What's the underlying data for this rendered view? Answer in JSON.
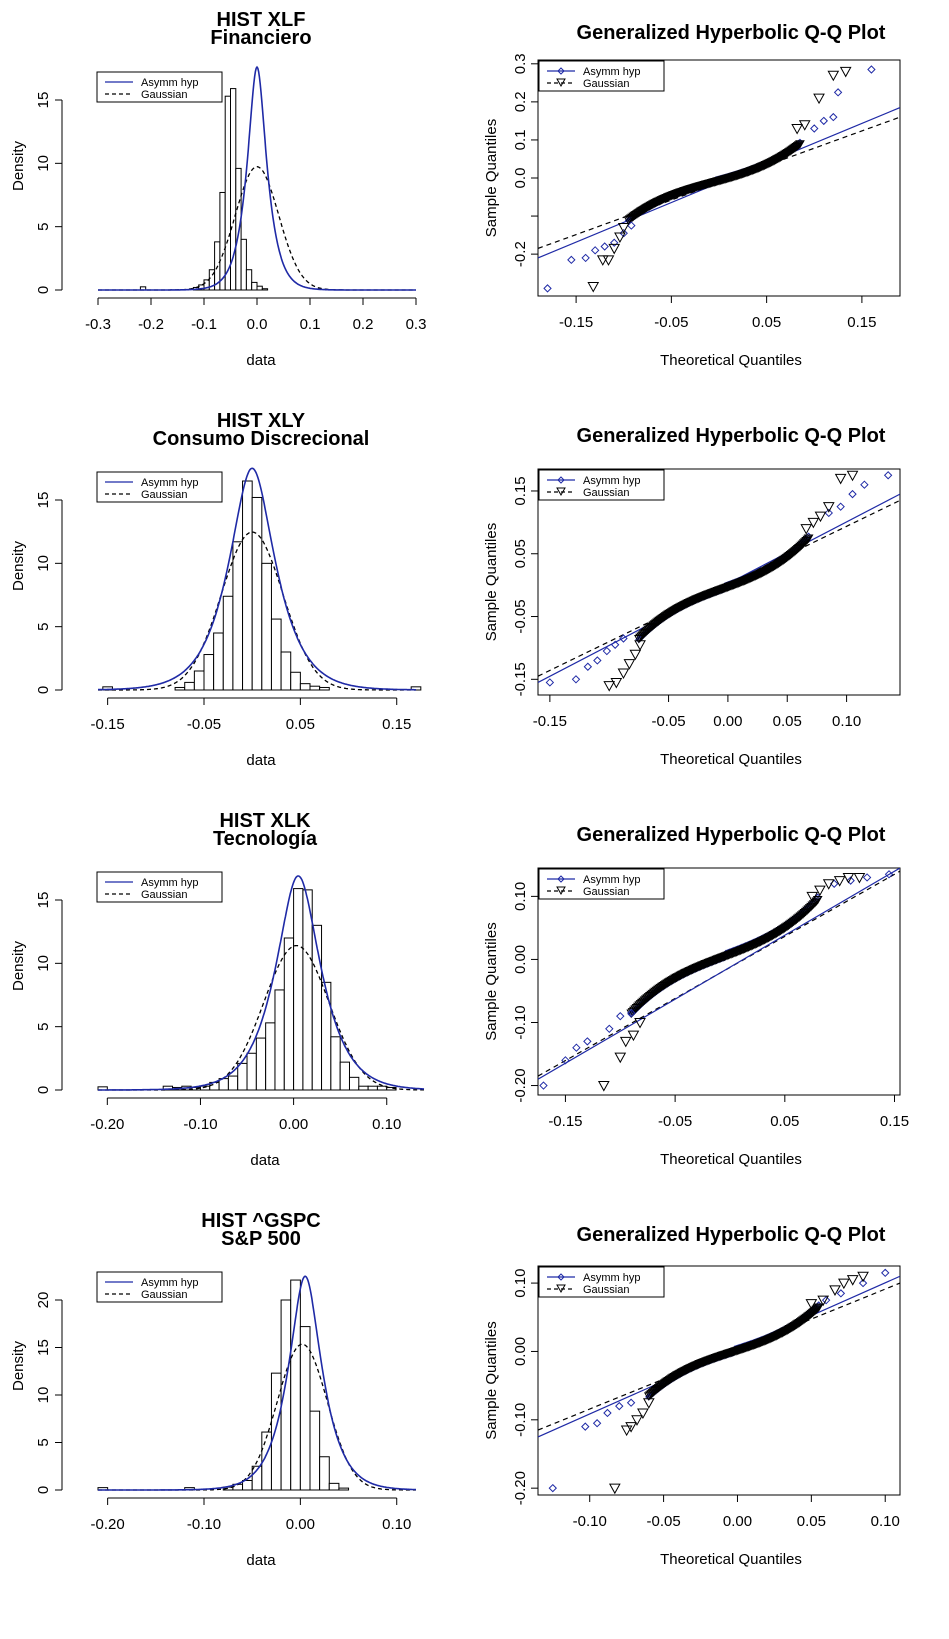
{
  "colors": {
    "asymm": "#1f2aa6",
    "gaussian": "#000000",
    "hist_fill": "#ffffff",
    "hist_border": "#000000",
    "background": "#ffffff"
  },
  "legend": {
    "asymm": "Asymm hyp",
    "gaussian": "Gaussian",
    "placement": "top-left"
  },
  "chart_data": [
    {
      "type": "bar",
      "title": [
        "HIST  XLF",
        "Financiero"
      ],
      "xlabel": "data",
      "ylabel": "Density",
      "xlim": [
        -0.3,
        0.3
      ],
      "ylim": [
        0,
        18
      ],
      "xticks": [
        -0.3,
        -0.2,
        -0.1,
        0.0,
        0.1,
        0.2,
        0.3
      ],
      "xtick_labels": [
        "-0.3",
        "-0.2",
        "-0.1",
        "0.0",
        "0.1",
        "0.2",
        "0.3"
      ],
      "yticks": [
        0,
        5,
        10,
        15
      ],
      "ytick_labels": [
        "0",
        "5",
        "10",
        "15"
      ],
      "bins": {
        "start": -0.12,
        "width": 0.01,
        "density": [
          0.2,
          0.4,
          0.8,
          1.6,
          3.8,
          7.7,
          15.3,
          15.9,
          9.6,
          4.0,
          1.6,
          0.6,
          0.3,
          0.1
        ]
      },
      "outlier_bins": [
        {
          "x0": -0.22,
          "density": 0.1
        }
      ],
      "asymm_hyp": {
        "mu": 0.0,
        "delta": 0.012,
        "alpha": 55,
        "peak": 17.6
      },
      "gaussian": {
        "mean": 0.0,
        "sd": 0.041
      }
    },
    {
      "type": "scatter",
      "title": [
        "Generalized Hyperbolic Q-Q Plot"
      ],
      "xlabel": "Theoretical Quantiles",
      "ylabel": "Sample Quantiles",
      "xlim": [
        -0.19,
        0.19
      ],
      "ylim": [
        -0.31,
        0.31
      ],
      "xticks": [
        -0.15,
        -0.05,
        0.05,
        0.15
      ],
      "xtick_labels": [
        "-0.15",
        "-0.05",
        "0.05",
        "0.15"
      ],
      "yticks": [
        -0.2,
        -0.1,
        0.0,
        0.1,
        0.2,
        0.3
      ],
      "ytick_labels": [
        "-0.2",
        "",
        "0.0",
        "0.1",
        "0.2",
        "0.3"
      ],
      "series": [
        {
          "name": "Asymm hyp",
          "marker": "diamond",
          "points": [
            [
              -0.18,
              -0.29
            ],
            [
              -0.155,
              -0.215
            ],
            [
              -0.14,
              -0.21
            ],
            [
              -0.13,
              -0.19
            ],
            [
              -0.12,
              -0.18
            ],
            [
              -0.11,
              -0.17
            ],
            [
              -0.1,
              -0.145
            ],
            [
              -0.092,
              -0.125
            ],
            [
              0.1,
              0.13
            ],
            [
              0.11,
              0.15
            ],
            [
              0.12,
              0.16
            ],
            [
              0.125,
              0.225
            ],
            [
              0.16,
              0.285
            ]
          ],
          "line": {
            "x": [
              -0.19,
              0.19
            ],
            "y": [
              -0.21,
              0.185
            ]
          }
        },
        {
          "name": "Gaussian",
          "marker": "triangle-down",
          "points": [
            [
              -0.132,
              -0.285
            ],
            [
              -0.122,
              -0.215
            ],
            [
              -0.116,
              -0.215
            ],
            [
              -0.11,
              -0.185
            ],
            [
              -0.104,
              -0.155
            ],
            [
              -0.1,
              -0.13
            ],
            [
              0.082,
              0.13
            ],
            [
              0.09,
              0.14
            ],
            [
              0.105,
              0.21
            ],
            [
              0.12,
              0.27
            ],
            [
              0.133,
              0.28
            ]
          ],
          "line": {
            "x": [
              -0.19,
              0.19
            ],
            "y": [
              -0.185,
              0.16
            ]
          }
        }
      ],
      "core": {
        "x0": -0.095,
        "x1": 0.085,
        "y0": -0.11,
        "y1": 0.09,
        "offset": 0.006
      }
    },
    {
      "type": "bar",
      "title": [
        "HIST  XLY",
        "Consumo Discrecional"
      ],
      "xlabel": "data",
      "ylabel": "Density",
      "xlim": [
        -0.16,
        0.17
      ],
      "ylim": [
        0,
        18
      ],
      "xticks": [
        -0.15,
        -0.05,
        0.05,
        0.15
      ],
      "xtick_labels": [
        "-0.15",
        "-0.05",
        "0.05",
        "0.15"
      ],
      "yticks": [
        0,
        5,
        10,
        15
      ],
      "ytick_labels": [
        "0",
        "5",
        "10",
        "15"
      ],
      "bins": {
        "start": -0.08,
        "width": 0.01,
        "density": [
          0.2,
          0.6,
          1.5,
          2.8,
          4.5,
          7.4,
          11.7,
          16.5,
          15.2,
          10.0,
          5.6,
          3.0,
          1.4,
          0.5,
          0.3,
          0.2
        ]
      },
      "outlier_bins": [
        {
          "x0": -0.155,
          "density": 0.1
        },
        {
          "x0": 0.165,
          "density": 0.1
        }
      ],
      "asymm_hyp": {
        "mu": 0.0,
        "delta": 0.018,
        "alpha": 45,
        "peak": 17.5
      },
      "gaussian": {
        "mean": 0.0,
        "sd": 0.032
      }
    },
    {
      "type": "scatter",
      "title": [
        "Generalized Hyperbolic Q-Q Plot"
      ],
      "xlabel": "Theoretical Quantiles",
      "ylabel": "Sample Quantiles",
      "xlim": [
        -0.16,
        0.145
      ],
      "ylim": [
        -0.175,
        0.185
      ],
      "xticks": [
        -0.15,
        -0.05,
        0.0,
        0.05,
        0.1
      ],
      "xtick_labels": [
        "-0.15",
        "-0.05",
        "0.00",
        "0.05",
        "0.10"
      ],
      "yticks": [
        -0.15,
        -0.05,
        0.05,
        0.15
      ],
      "ytick_labels": [
        "-0.15",
        "-0.05",
        "0.05",
        "0.15"
      ],
      "series": [
        {
          "name": "Asymm hyp",
          "marker": "diamond",
          "points": [
            [
              -0.15,
              -0.155
            ],
            [
              -0.128,
              -0.15
            ],
            [
              -0.118,
              -0.13
            ],
            [
              -0.11,
              -0.12
            ],
            [
              -0.102,
              -0.105
            ],
            [
              -0.095,
              -0.095
            ],
            [
              -0.088,
              -0.085
            ],
            [
              0.085,
              0.115
            ],
            [
              0.095,
              0.125
            ],
            [
              0.105,
              0.145
            ],
            [
              0.115,
              0.16
            ],
            [
              0.135,
              0.175
            ]
          ],
          "line": {
            "x": [
              -0.16,
              0.145
            ],
            "y": [
              -0.155,
              0.145
            ]
          }
        },
        {
          "name": "Gaussian",
          "marker": "triangle-down",
          "points": [
            [
              -0.1,
              -0.16
            ],
            [
              -0.094,
              -0.155
            ],
            [
              -0.088,
              -0.14
            ],
            [
              -0.083,
              -0.125
            ],
            [
              -0.078,
              -0.11
            ],
            [
              -0.074,
              -0.095
            ],
            [
              0.066,
              0.09
            ],
            [
              0.072,
              0.1
            ],
            [
              0.078,
              0.11
            ],
            [
              0.085,
              0.125
            ],
            [
              0.095,
              0.17
            ],
            [
              0.105,
              0.175
            ]
          ],
          "line": {
            "x": [
              -0.16,
              0.145
            ],
            "y": [
              -0.145,
              0.135
            ]
          }
        }
      ],
      "core": {
        "x0": -0.075,
        "x1": 0.068,
        "y0": -0.085,
        "y1": 0.075,
        "offset": 0.005
      }
    },
    {
      "type": "bar",
      "title": [
        "HIST  XLK",
        "Tecnología"
      ],
      "xlabel": "data",
      "ylabel": "Density",
      "xlim": [
        -0.21,
        0.14
      ],
      "ylim": [
        0,
        18
      ],
      "xticks": [
        -0.2,
        -0.1,
        0.0,
        0.1
      ],
      "xtick_labels": [
        "-0.20",
        "-0.10",
        "0.00",
        "0.10"
      ],
      "yticks": [
        0,
        5,
        10,
        15
      ],
      "ytick_labels": [
        "0",
        "5",
        "10",
        "15"
      ],
      "bins": {
        "start": -0.14,
        "width": 0.01,
        "density": [
          0.3,
          0.2,
          0.3,
          0.2,
          0.3,
          0.6,
          0.9,
          1.1,
          2.1,
          2.9,
          4.1,
          5.3,
          7.9,
          12.0,
          15.9,
          15.8,
          13.0,
          8.5,
          4.2,
          2.2,
          1.0,
          0.3,
          0.3,
          0.3,
          0.2
        ]
      },
      "outlier_bins": [
        {
          "x0": -0.21,
          "density": 0.1
        }
      ],
      "asymm_hyp": {
        "mu": 0.005,
        "delta": 0.018,
        "alpha": 45,
        "peak": 16.9
      },
      "gaussian": {
        "mean": 0.003,
        "sd": 0.035
      }
    },
    {
      "type": "scatter",
      "title": [
        "Generalized Hyperbolic Q-Q Plot"
      ],
      "xlabel": "Theoretical Quantiles",
      "ylabel": "Sample Quantiles",
      "xlim": [
        -0.175,
        0.155
      ],
      "ylim": [
        -0.215,
        0.145
      ],
      "xticks": [
        -0.15,
        -0.05,
        0.05,
        0.15
      ],
      "xtick_labels": [
        "-0.15",
        "-0.05",
        "0.05",
        "0.15"
      ],
      "yticks": [
        -0.2,
        -0.1,
        0.0,
        0.1
      ],
      "ytick_labels": [
        "-0.20",
        "-0.10",
        "0.00",
        "0.10"
      ],
      "series": [
        {
          "name": "Asymm hyp",
          "marker": "diamond",
          "points": [
            [
              -0.17,
              -0.2
            ],
            [
              -0.15,
              -0.16
            ],
            [
              -0.14,
              -0.14
            ],
            [
              -0.13,
              -0.13
            ],
            [
              -0.11,
              -0.11
            ],
            [
              -0.1,
              -0.09
            ],
            [
              -0.09,
              -0.085
            ],
            [
              0.095,
              0.12
            ],
            [
              0.11,
              0.125
            ],
            [
              0.125,
              0.13
            ],
            [
              0.145,
              0.135
            ]
          ],
          "line": {
            "x": [
              -0.175,
              0.155
            ],
            "y": [
              -0.19,
              0.145
            ]
          }
        },
        {
          "name": "Gaussian",
          "marker": "triangle-down",
          "points": [
            [
              -0.115,
              -0.2
            ],
            [
              -0.1,
              -0.155
            ],
            [
              -0.095,
              -0.13
            ],
            [
              -0.088,
              -0.12
            ],
            [
              -0.082,
              -0.1
            ],
            [
              0.075,
              0.1
            ],
            [
              0.082,
              0.11
            ],
            [
              0.09,
              0.12
            ],
            [
              0.1,
              0.125
            ],
            [
              0.108,
              0.13
            ],
            [
              0.118,
              0.13
            ]
          ],
          "line": {
            "x": [
              -0.175,
              0.155
            ],
            "y": [
              -0.185,
              0.14
            ]
          }
        }
      ],
      "core": {
        "x0": -0.09,
        "x1": 0.08,
        "y0": -0.085,
        "y1": 0.095,
        "offset": 0.006
      }
    },
    {
      "type": "bar",
      "title": [
        "HIST  ^GSPC",
        "S&P 500"
      ],
      "xlabel": "data",
      "ylabel": "Density",
      "xlim": [
        -0.21,
        0.12
      ],
      "ylim": [
        0,
        24
      ],
      "xticks": [
        -0.2,
        -0.1,
        0.0,
        0.1
      ],
      "xtick_labels": [
        "-0.20",
        "-0.10",
        "0.00",
        "0.10"
      ],
      "yticks": [
        0,
        5,
        10,
        15,
        20
      ],
      "ytick_labels": [
        "0",
        "5",
        "10",
        "15",
        "20"
      ],
      "bins": {
        "start": -0.08,
        "width": 0.01,
        "density": [
          0.3,
          0.6,
          1.0,
          2.5,
          6.1,
          12.3,
          20.0,
          22.1,
          17.2,
          8.3,
          3.5,
          0.7,
          0.2
        ]
      },
      "outlier_bins": [
        {
          "x0": -0.21,
          "density": 0.1
        },
        {
          "x0": -0.12,
          "density": 0.1
        }
      ],
      "asymm_hyp": {
        "mu": 0.005,
        "delta": 0.012,
        "alpha": 60,
        "peak": 22.5
      },
      "gaussian": {
        "mean": 0.002,
        "sd": 0.026
      }
    },
    {
      "type": "scatter",
      "title": [
        "Generalized Hyperbolic Q-Q Plot"
      ],
      "xlabel": "Theoretical Quantiles",
      "ylabel": "Sample Quantiles",
      "xlim": [
        -0.135,
        0.11
      ],
      "ylim": [
        -0.21,
        0.125
      ],
      "xticks": [
        -0.1,
        -0.05,
        0.0,
        0.05,
        0.1
      ],
      "xtick_labels": [
        "-0.10",
        "-0.05",
        "0.00",
        "0.05",
        "0.10"
      ],
      "yticks": [
        -0.2,
        -0.1,
        0.0,
        0.1
      ],
      "ytick_labels": [
        "-0.20",
        "-0.10",
        "0.00",
        "0.10"
      ],
      "series": [
        {
          "name": "Asymm hyp",
          "marker": "diamond",
          "points": [
            [
              -0.125,
              -0.2
            ],
            [
              -0.103,
              -0.11
            ],
            [
              -0.095,
              -0.105
            ],
            [
              -0.088,
              -0.09
            ],
            [
              -0.08,
              -0.08
            ],
            [
              -0.072,
              -0.075
            ],
            [
              0.06,
              0.075
            ],
            [
              0.07,
              0.085
            ],
            [
              0.085,
              0.1
            ],
            [
              0.1,
              0.115
            ]
          ],
          "line": {
            "x": [
              -0.135,
              0.11
            ],
            "y": [
              -0.125,
              0.11
            ]
          }
        },
        {
          "name": "Gaussian",
          "marker": "triangle-down",
          "points": [
            [
              -0.083,
              -0.2
            ],
            [
              -0.075,
              -0.115
            ],
            [
              -0.072,
              -0.11
            ],
            [
              -0.068,
              -0.1
            ],
            [
              -0.064,
              -0.09
            ],
            [
              -0.06,
              -0.075
            ],
            [
              0.05,
              0.07
            ],
            [
              0.058,
              0.075
            ],
            [
              0.066,
              0.09
            ],
            [
              0.072,
              0.1
            ],
            [
              0.078,
              0.105
            ],
            [
              0.085,
              0.11
            ]
          ],
          "line": {
            "x": [
              -0.135,
              0.11
            ],
            "y": [
              -0.115,
              0.1
            ]
          }
        }
      ],
      "core": {
        "x0": -0.06,
        "x1": 0.055,
        "y0": -0.065,
        "y1": 0.065,
        "offset": 0.005
      }
    }
  ]
}
